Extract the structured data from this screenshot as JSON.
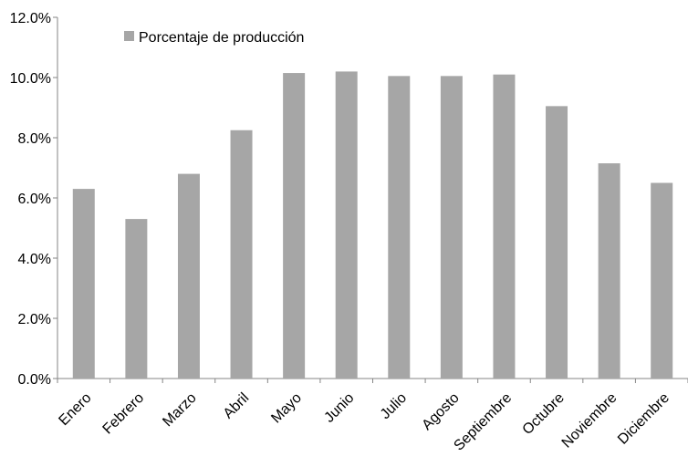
{
  "chart_data": {
    "type": "bar",
    "categories": [
      "Enero",
      "Febrero",
      "Marzo",
      "Abril",
      "Mayo",
      "Junio",
      "Julio",
      "Agosto",
      "Septiembre",
      "Octubre",
      "Noviembre",
      "Diciembre"
    ],
    "series": [
      {
        "name": "Porcentaje de producción",
        "values": [
          6.3,
          5.3,
          6.8,
          8.25,
          10.15,
          10.2,
          10.05,
          10.05,
          10.1,
          9.05,
          7.15,
          6.5
        ],
        "color": "#a6a6a6"
      }
    ],
    "y_ticks": [
      "0.0%",
      "2.0%",
      "4.0%",
      "6.0%",
      "8.0%",
      "10.0%",
      "12.0%"
    ],
    "ylim": [
      0,
      12
    ],
    "y_format": "percent",
    "grid": false,
    "legend_position": "top-left",
    "title": "",
    "xlabel": "",
    "ylabel": ""
  }
}
